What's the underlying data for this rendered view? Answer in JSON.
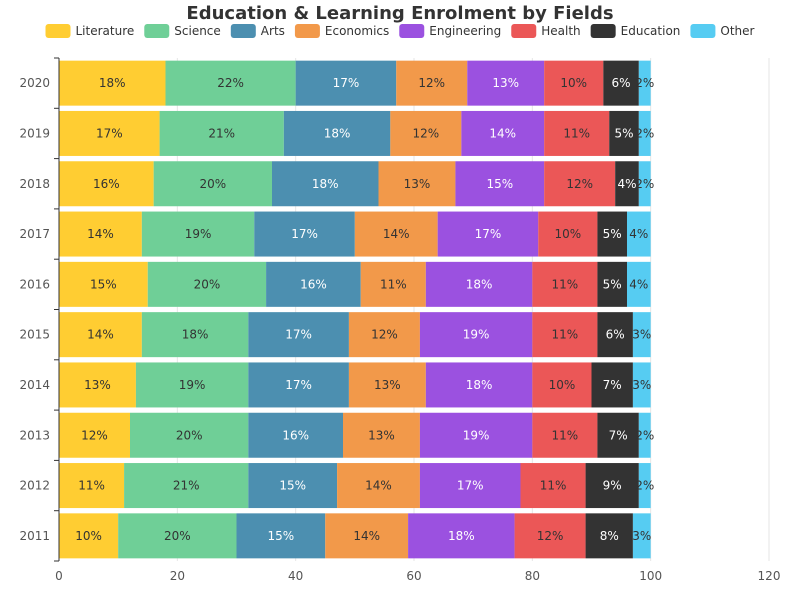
{
  "chart_data": {
    "type": "bar",
    "orientation": "horizontal",
    "stacked": true,
    "title": "Education & Learning Enrolment by Fields",
    "categories": [
      "2011",
      "2012",
      "2013",
      "2014",
      "2015",
      "2016",
      "2017",
      "2018",
      "2019",
      "2020"
    ],
    "series": [
      {
        "name": "Literature",
        "color": "#FFCD32",
        "label_color": "#333333",
        "values": [
          10,
          11,
          12,
          13,
          14,
          15,
          14,
          16,
          17,
          18
        ]
      },
      {
        "name": "Science",
        "color": "#6FCF97",
        "label_color": "#333333",
        "values": [
          20,
          21,
          20,
          19,
          18,
          20,
          19,
          20,
          21,
          22
        ]
      },
      {
        "name": "Arts",
        "color": "#4C8FB0",
        "label_color": "#ffffff",
        "values": [
          15,
          15,
          16,
          17,
          17,
          16,
          17,
          18,
          18,
          17
        ]
      },
      {
        "name": "Economics",
        "color": "#F2994A",
        "label_color": "#333333",
        "values": [
          14,
          14,
          13,
          13,
          12,
          11,
          14,
          13,
          12,
          12
        ]
      },
      {
        "name": "Engineering",
        "color": "#9B51E0",
        "label_color": "#ffffff",
        "values": [
          18,
          17,
          19,
          18,
          19,
          18,
          17,
          15,
          14,
          13
        ]
      },
      {
        "name": "Health",
        "color": "#EB5757",
        "label_color": "#333333",
        "values": [
          12,
          11,
          11,
          10,
          11,
          11,
          10,
          12,
          11,
          10
        ]
      },
      {
        "name": "Education",
        "color": "#333333",
        "label_color": "#ffffff",
        "values": [
          8,
          9,
          7,
          7,
          6,
          5,
          5,
          4,
          5,
          6
        ]
      },
      {
        "name": "Other",
        "color": "#56CCF2",
        "label_color": "#333333",
        "values": [
          3,
          2,
          2,
          3,
          3,
          4,
          4,
          2,
          2,
          2
        ]
      }
    ],
    "xlim": [
      0,
      120
    ],
    "xticks": [
      0,
      20,
      40,
      60,
      80,
      100,
      120
    ],
    "value_suffix": "%",
    "legend_position": "top",
    "grid": true
  }
}
